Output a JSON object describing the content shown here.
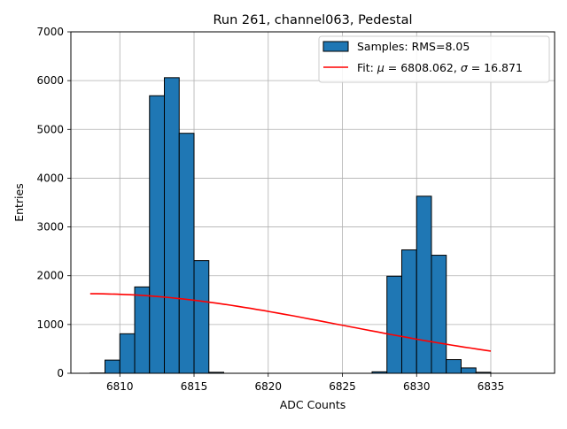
{
  "chart_data": {
    "type": "bar",
    "title": "Run 261, channel063, Pedestal",
    "xlabel": "ADC Counts",
    "ylabel": "Entries",
    "xlim": [
      6806.7,
      6839.3
    ],
    "ylim": [
      0,
      7000
    ],
    "xticks": [
      6810,
      6815,
      6820,
      6825,
      6830,
      6835
    ],
    "yticks": [
      0,
      1000,
      2000,
      3000,
      4000,
      5000,
      6000,
      7000
    ],
    "grid": true,
    "legend_position": "top-right",
    "legend": {
      "bars_label": "Samples: RMS=8.05",
      "fit_label_prefix": "Fit: ",
      "fit_label_mu": "μ",
      "fit_label_mid": " = 6808.062, ",
      "fit_label_sigma": "σ",
      "fit_label_end": " = 16.871"
    },
    "bin_width": 1,
    "bar_color": "#1f77b4",
    "bar_edge_color": "#000000",
    "fit_color": "#ff0000",
    "bins": [
      {
        "left": 6808,
        "count": 5
      },
      {
        "left": 6809,
        "count": 270
      },
      {
        "left": 6810,
        "count": 810
      },
      {
        "left": 6811,
        "count": 1770
      },
      {
        "left": 6812,
        "count": 5690
      },
      {
        "left": 6813,
        "count": 6060
      },
      {
        "left": 6814,
        "count": 4920
      },
      {
        "left": 6815,
        "count": 2310
      },
      {
        "left": 6816,
        "count": 20
      },
      {
        "left": 6827,
        "count": 30
      },
      {
        "left": 6828,
        "count": 1990
      },
      {
        "left": 6829,
        "count": 2530
      },
      {
        "left": 6830,
        "count": 3630
      },
      {
        "left": 6831,
        "count": 2420
      },
      {
        "left": 6832,
        "count": 280
      },
      {
        "left": 6833,
        "count": 110
      },
      {
        "left": 6834,
        "count": 20
      }
    ],
    "fit": {
      "mu": 6808.062,
      "sigma": 16.871,
      "x_range": [
        6808,
        6835
      ],
      "peak_value": 1630
    }
  }
}
